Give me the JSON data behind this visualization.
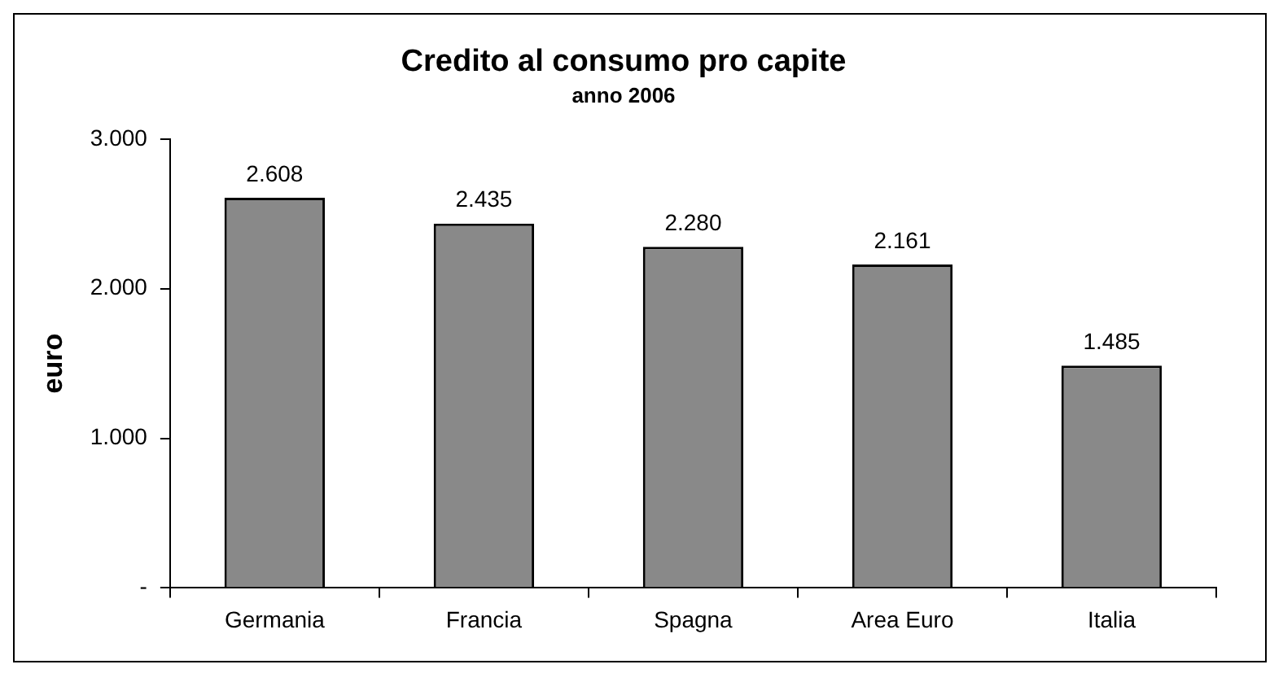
{
  "chart_data": {
    "type": "bar",
    "title": "Credito al consumo pro capite",
    "subtitle": "anno 2006",
    "ylabel": "euro",
    "categories": [
      "Germania",
      "Francia",
      "Spagna",
      "Area Euro",
      "Italia"
    ],
    "values": [
      2608,
      2435,
      2280,
      2161,
      1485
    ],
    "value_labels": [
      "2.608",
      "2.435",
      "2.280",
      "2.161",
      "1.485"
    ],
    "color": "#898989",
    "ylim": [
      0,
      3000
    ],
    "yticks": [
      {
        "value": 0,
        "label": "-"
      },
      {
        "value": 1000,
        "label": "1.000"
      },
      {
        "value": 2000,
        "label": "2.000"
      },
      {
        "value": 3000,
        "label": "3.000"
      }
    ],
    "grid": false,
    "legend": false
  }
}
